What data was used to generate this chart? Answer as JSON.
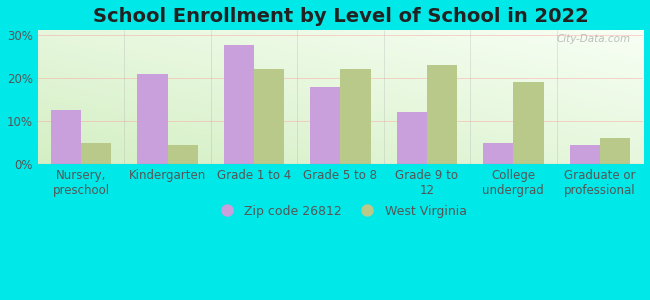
{
  "title": "School Enrollment by Level of School in 2022",
  "categories": [
    "Nursery,\npreschool",
    "Kindergarten",
    "Grade 1 to 4",
    "Grade 5 to 8",
    "Grade 9 to\n12",
    "College\nundergrad",
    "Graduate or\nprofessional"
  ],
  "zip_values": [
    12.5,
    21.0,
    27.5,
    18.0,
    12.0,
    5.0,
    4.5
  ],
  "wv_values": [
    5.0,
    4.5,
    22.0,
    22.0,
    23.0,
    19.0,
    6.0
  ],
  "zip_color": "#c9a0dc",
  "wv_color": "#b8c98a",
  "background_color": "#00e8e8",
  "ylim": [
    0,
    31
  ],
  "yticks": [
    0,
    10,
    20,
    30
  ],
  "ytick_labels": [
    "0%",
    "10%",
    "20%",
    "30%"
  ],
  "legend_zip_label": "Zip code 26812",
  "legend_wv_label": "West Virginia",
  "bar_width": 0.35,
  "title_fontsize": 14,
  "tick_fontsize": 8.5,
  "legend_fontsize": 9,
  "watermark": "City-Data.com"
}
